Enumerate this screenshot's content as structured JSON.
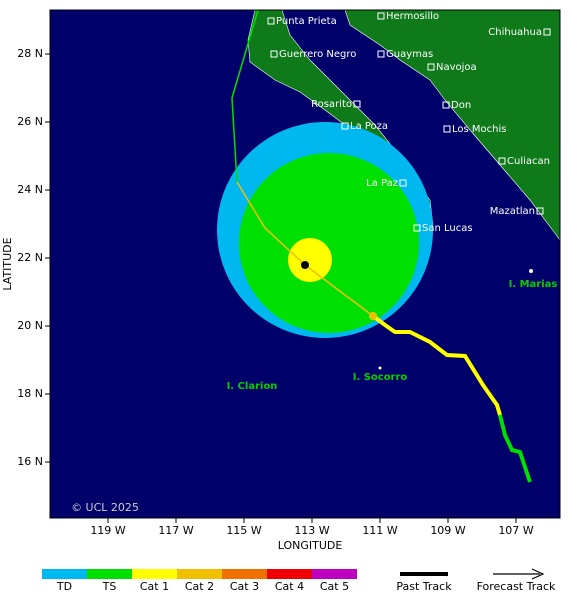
{
  "axes": {
    "x_label": "LONGITUDE",
    "y_label": "LATITUDE",
    "lon_ticks": [
      {
        "value": 119,
        "label": "119 W"
      },
      {
        "value": 117,
        "label": "117 W"
      },
      {
        "value": 115,
        "label": "115 W"
      },
      {
        "value": 113,
        "label": "113 W"
      },
      {
        "value": 111,
        "label": "111 W"
      },
      {
        "value": 109,
        "label": "109 W"
      },
      {
        "value": 107,
        "label": "107 W"
      }
    ],
    "lat_ticks": [
      {
        "value": 28,
        "label": "28 N"
      },
      {
        "value": 26,
        "label": "26 N"
      },
      {
        "value": 24,
        "label": "24 N"
      },
      {
        "value": 22,
        "label": "22 N"
      },
      {
        "value": 20,
        "label": "20 N"
      },
      {
        "value": 18,
        "label": "18 N"
      },
      {
        "value": 16,
        "label": "16 N"
      }
    ]
  },
  "places": [
    "Punta Prieta",
    "Hermosillo",
    "Chihuahua",
    "Guerrero Negro",
    "Guaymas",
    "Navojoa",
    "Rosarito",
    "Don",
    "La Poza",
    "Los Mochis",
    "Culiacan",
    "La Paz",
    "Mazatlan",
    "San Lucas"
  ],
  "islands": [
    "I. Marias",
    "I. Clarion",
    "I. Socorro"
  ],
  "credit": "© UCL 2025",
  "legend": {
    "categories": [
      {
        "label": "TD",
        "color": "#00b8f0"
      },
      {
        "label": "TS",
        "color": "#00e000"
      },
      {
        "label": "Cat 1",
        "color": "#ffff00"
      },
      {
        "label": "Cat 2",
        "color": "#f0c000"
      },
      {
        "label": "Cat 3",
        "color": "#f07000"
      },
      {
        "label": "Cat 4",
        "color": "#f00000"
      },
      {
        "label": "Cat 5",
        "color": "#c000c0"
      }
    ],
    "past_track": "Past Track",
    "forecast_track": "Forecast Track"
  }
}
